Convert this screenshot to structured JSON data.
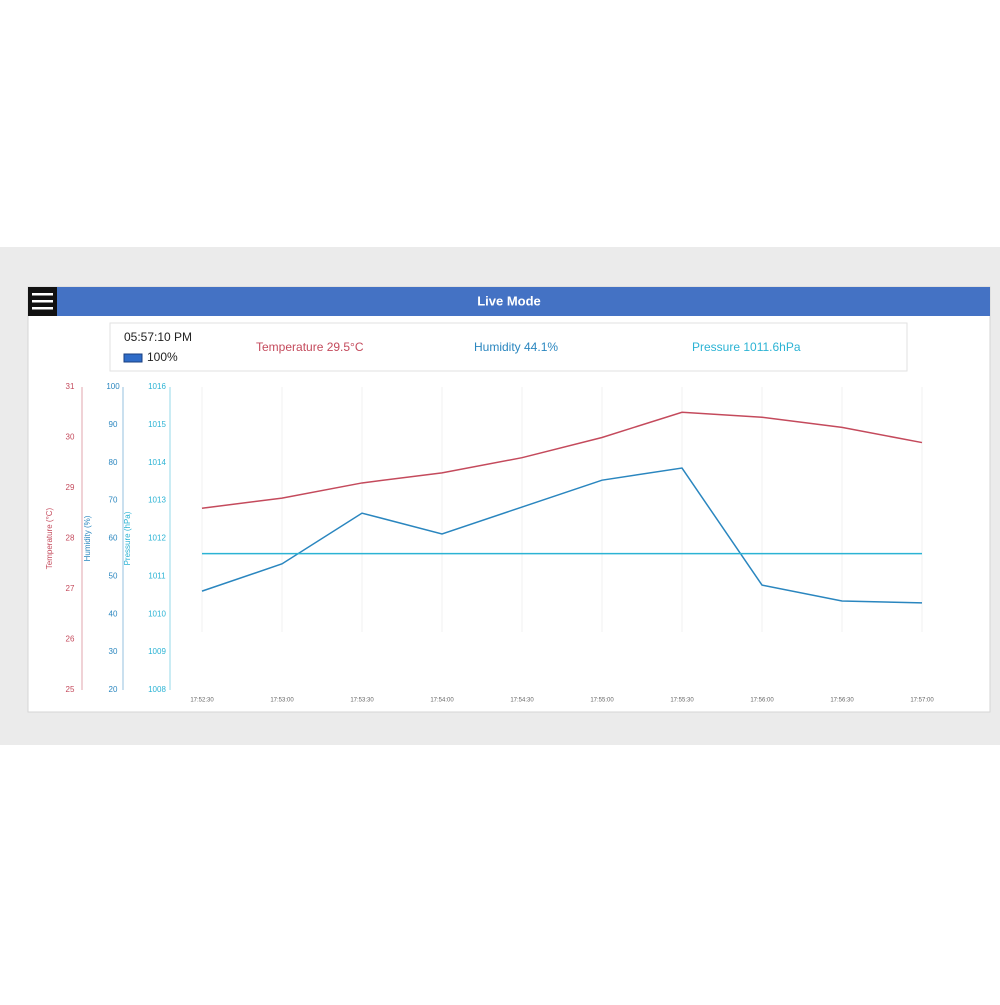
{
  "header": {
    "title": "Live Mode"
  },
  "status": {
    "time": "05:57:10 PM",
    "battery": "100%"
  },
  "readings": [
    "Temperature 29.5°C",
    "Humidity 44.1%",
    "Pressure 1011.6hPa"
  ],
  "chart_data": {
    "type": "line",
    "grid": true,
    "categories": [
      "17:52:30",
      "17:53:00",
      "17:53:30",
      "17:54:00",
      "17:54:30",
      "17:55:00",
      "17:55:30",
      "17:56:00",
      "17:56:30",
      "17:57:00"
    ],
    "series": [
      {
        "name": "Temperature (°C)",
        "color": "#c44a5c",
        "values": [
          28.6,
          28.8,
          29.1,
          29.3,
          29.6,
          30.0,
          30.5,
          30.4,
          30.2,
          29.9
        ],
        "ylim": [
          25,
          31
        ],
        "yticks": [
          25,
          26,
          27,
          28,
          29,
          30,
          31
        ]
      },
      {
        "name": "Humidity (%)",
        "color": "#2a86bf",
        "values": [
          46.1,
          53.3,
          66.7,
          61.2,
          68.3,
          75.4,
          78.6,
          47.7,
          43.5,
          43.0
        ],
        "ylim": [
          20,
          100
        ],
        "yticks": [
          20,
          30,
          40,
          50,
          60,
          70,
          80,
          90,
          100
        ]
      },
      {
        "name": "Pressure (hPa)",
        "color": "#2bb3d4",
        "values": [
          1011.6,
          1011.6,
          1011.6,
          1011.6,
          1011.6,
          1011.6,
          1011.6,
          1011.6,
          1011.6,
          1011.6
        ],
        "ylim": [
          1008,
          1016
        ],
        "yticks": [
          1008,
          1009,
          1010,
          1011,
          1012,
          1013,
          1014,
          1015,
          1016
        ]
      }
    ]
  }
}
